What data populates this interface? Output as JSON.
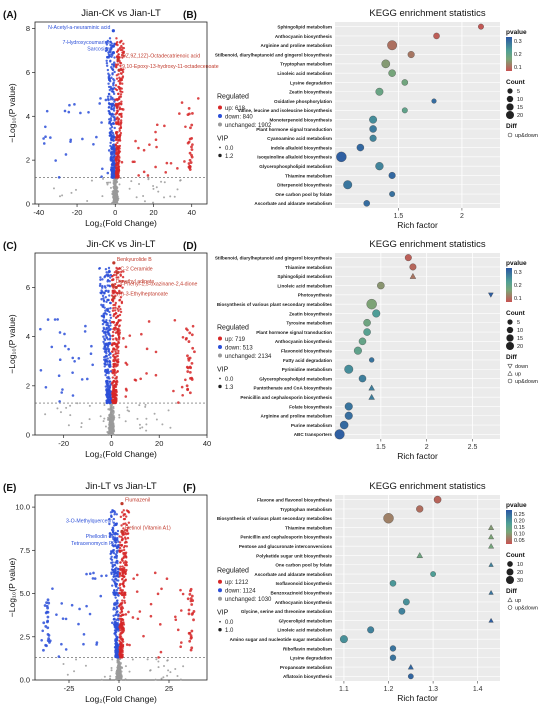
{
  "colors": {
    "up": "#d62728",
    "down": "#2b4fd8",
    "unchanged": "#9a9a9a",
    "ann_up": "#c0392b",
    "ann_down": "#2b4fd8"
  },
  "chart_data": [
    {
      "type": "scatter",
      "panel_label": "(A)",
      "title": "Jian-CK vs Jian-LT",
      "xlabel": "Log₂(Fold Change)",
      "ylabel": "−Log₁₀(P value)",
      "xlim": [
        -42,
        48
      ],
      "ylim": [
        0,
        8.3
      ],
      "xticks": [
        -40,
        -20,
        0,
        20,
        40
      ],
      "yticks": [
        0,
        2,
        4,
        6,
        8
      ],
      "threshold_y": 1.2,
      "legend": {
        "title": "Regulated",
        "entries": [
          "up: 618",
          "down: 840",
          "unchanged: 1902"
        ],
        "vip_title": "VIP",
        "vip_values": [
          "0.0",
          "1.2"
        ]
      },
      "annotations": [
        {
          "label": "N-Acetyl-a-neuraminic acid",
          "x": -1.0,
          "y": 7.9,
          "regulated": "down"
        },
        {
          "label": "7-Hydroxycoumarine",
          "x": -1.0,
          "y": 7.2,
          "regulated": "down"
        },
        {
          "label": "Sarcosine",
          "x": -1.0,
          "y": 6.9,
          "regulated": "down"
        },
        {
          "label": "(9Z,9Z,12Z)-Octadecatrienoic acid",
          "x": 1.5,
          "y": 6.6,
          "regulated": "up"
        },
        {
          "label": "9,10-Epoxy-13-hydroxy-11-octadecenoate",
          "x": 2.0,
          "y": 6.1,
          "regulated": "up"
        }
      ]
    },
    {
      "type": "dot",
      "panel_label": "(B)",
      "title": "KEGG enrichment statistics",
      "xlabel": "Rich factor",
      "xlim": [
        1.0,
        2.3
      ],
      "xticks": [
        1.5,
        2.0
      ],
      "categories": [
        "Sphingolipid metabolism",
        "Anthocyanin biosynthesis",
        "Arginine and proline metabolism",
        "Stilbenoid, diarylheptanoid and gingerol biosynthesis",
        "Tryptophan metabolism",
        "Linoleic acid metabolism",
        "Lysine degradation",
        "Zeatin biosynthesis",
        "Oxidative phosphorylation",
        "Valine, leucine and isoleucine biosynthesis",
        "Monoterpenoid biosynthesis",
        "Plant hormone signal transduction",
        "Cyanoamino acid metabolism",
        "Indole alkaloid biosynthesis",
        "Isoquinoline alkaloid biosynthesis",
        "Glycerophospholipid metabolism",
        "Thiamine metabolism",
        "Diterpenoid biosynthesis",
        "One carbon pool by folate",
        "Ascorbate and aldarate metabolism"
      ],
      "rich": [
        2.15,
        1.8,
        1.45,
        1.6,
        1.4,
        1.45,
        1.55,
        1.35,
        1.78,
        1.55,
        1.3,
        1.3,
        1.3,
        1.2,
        1.05,
        1.35,
        1.45,
        1.1,
        1.45,
        1.25
      ],
      "counts": [
        2,
        3,
        12,
        4,
        8,
        5,
        3,
        6,
        1,
        2,
        6,
        5,
        4,
        5,
        14,
        7,
        4,
        9,
        2,
        3
      ],
      "pvalue": [
        0.01,
        0.02,
        0.05,
        0.06,
        0.12,
        0.15,
        0.16,
        0.18,
        0.35,
        0.2,
        0.28,
        0.32,
        0.3,
        0.36,
        0.38,
        0.3,
        0.36,
        0.33,
        0.34,
        0.35
      ],
      "diff": [
        "up&down",
        "up&down",
        "up&down",
        "up&down",
        "up&down",
        "up&down",
        "up&down",
        "up&down",
        "up&down",
        "up&down",
        "up&down",
        "up&down",
        "up&down",
        "up&down",
        "up&down",
        "up&down",
        "up&down",
        "up&down",
        "up&down",
        "up&down"
      ],
      "legend": {
        "pvalue_title": "pvalue",
        "pvalue_ticks": [
          "0.3",
          "0.2",
          "0.1"
        ],
        "count_title": "Count",
        "count_sizes": [
          5,
          10,
          15,
          20
        ],
        "diff_title": "Diff",
        "diff_entries": [
          "up&down"
        ]
      }
    },
    {
      "type": "scatter",
      "panel_label": "(C)",
      "title": "Jin-CK vs Jin-LT",
      "xlabel": "Log₂(Fold Change)",
      "ylabel": "−Log₁₀(P value)",
      "xlim": [
        -32,
        40
      ],
      "ylim": [
        0,
        7.4
      ],
      "xticks": [
        -20,
        0,
        20,
        40
      ],
      "yticks": [
        0,
        2,
        4,
        6
      ],
      "threshold_y": 1.3,
      "legend": {
        "title": "Regulated",
        "entries": [
          "up: 719",
          "down: 513",
          "unchanged: 2134"
        ],
        "vip_title": "VIP",
        "vip_values": [
          "0.0",
          "1.3"
        ]
      },
      "annotations": [
        {
          "label": "Benkyurolide B",
          "x": 1.0,
          "y": 7.0,
          "regulated": "up"
        },
        {
          "label": "C-2 Ceramide",
          "x": 2.5,
          "y": 6.6,
          "regulated": "up"
        },
        {
          "label": "Dimethyl adipate",
          "x": 0.5,
          "y": 6.1,
          "regulated": "up"
        },
        {
          "label": "3-Phenyl-1,5-oxazinane-2,4-dione",
          "x": 2.0,
          "y": 6.0,
          "regulated": "up"
        },
        {
          "label": "(R)-3-Ethylheptanoate",
          "x": 1.0,
          "y": 5.6,
          "regulated": "up"
        }
      ]
    },
    {
      "type": "dot",
      "panel_label": "(D)",
      "title": "KEGG enrichment statistics",
      "xlabel": "Rich factor",
      "xlim": [
        1.0,
        2.8
      ],
      "xticks": [
        1.5,
        2.0,
        2.5
      ],
      "categories": [
        "Stilbenoid, diarylheptanoid and gingerol biosynthesis",
        "Thiamine metabolism",
        "Sphingolipid metabolism",
        "Linoleic acid metabolism",
        "Photosynthesis",
        "Biosynthesis of various plant secondary metabolites",
        "Zeatin biosynthesis",
        "Tyrosine metabolism",
        "Plant hormone signal transduction",
        "Anthocyanin biosynthesis",
        "Flavonoid biosynthesis",
        "Fatty acid degradation",
        "Pyrimidine metabolism",
        "Glycerophospholipid metabolism",
        "Pantothenate and CoA biosynthesis",
        "Penicillin and cephalosporin biosynthesis",
        "Folate biosynthesis",
        "Arginine and proline metabolism",
        "Purine metabolism",
        "ABC transporters"
      ],
      "rich": [
        1.8,
        1.85,
        1.85,
        1.5,
        2.7,
        1.4,
        1.45,
        1.35,
        1.35,
        1.3,
        1.25,
        1.4,
        1.15,
        1.3,
        1.4,
        1.4,
        1.15,
        1.15,
        1.1,
        1.05
      ],
      "counts": [
        3,
        3,
        2,
        4,
        1,
        11,
        5,
        4,
        4,
        4,
        5,
        1,
        7,
        4,
        2,
        2,
        5,
        5,
        6,
        10
      ],
      "pvalue": [
        0.02,
        0.03,
        0.05,
        0.1,
        0.34,
        0.12,
        0.22,
        0.15,
        0.2,
        0.17,
        0.18,
        0.3,
        0.25,
        0.28,
        0.28,
        0.28,
        0.3,
        0.31,
        0.32,
        0.34
      ],
      "diff": [
        "up&down",
        "up&down",
        "up",
        "up&down",
        "down",
        "up&down",
        "up&down",
        "up&down",
        "up&down",
        "up&down",
        "up&down",
        "up&down",
        "up&down",
        "up&down",
        "up",
        "up",
        "up&down",
        "up&down",
        "up&down",
        "up&down"
      ],
      "legend": {
        "pvalue_title": "pvalue",
        "pvalue_ticks": [
          "0.3",
          "0.2",
          "0.1"
        ],
        "count_title": "Count",
        "count_sizes": [
          5,
          10,
          15,
          20
        ],
        "diff_title": "Diff",
        "diff_entries": [
          "down",
          "up",
          "up&down"
        ]
      }
    },
    {
      "type": "scatter",
      "panel_label": "(E)",
      "title": "Jin-LT vs Jian-LT",
      "xlabel": "Log₂(Fold Change)",
      "ylabel": "−Log₁₀(P value)",
      "xlim": [
        -42,
        44
      ],
      "ylim": [
        0,
        10.7
      ],
      "xticks": [
        -25,
        0,
        25
      ],
      "yticks": [
        0.0,
        2.5,
        5.0,
        7.5,
        10.0
      ],
      "threshold_y": 1.3,
      "legend": {
        "title": "Regulated",
        "entries": [
          "up: 1212",
          "down: 1124",
          "unchanged: 1030"
        ],
        "vip_title": "VIP",
        "vip_values": [
          "0.0",
          "1.0"
        ]
      },
      "annotations": [
        {
          "label": "Flumazenil",
          "x": 1.5,
          "y": 10.2,
          "regulated": "up"
        },
        {
          "label": "3-O-Methylquercetin",
          "x": -1.5,
          "y": 9.0,
          "regulated": "down"
        },
        {
          "label": "Retinol (Vitamin A1)",
          "x": 1.5,
          "y": 8.6,
          "regulated": "up"
        },
        {
          "label": "Phellodin B",
          "x": -2.0,
          "y": 8.1,
          "regulated": "down"
        },
        {
          "label": "Tetracenomycin F2",
          "x": -0.5,
          "y": 7.7,
          "regulated": "down"
        }
      ]
    },
    {
      "type": "dot",
      "panel_label": "(F)",
      "title": "KEGG enrichment statistics",
      "xlabel": "Rich factor",
      "xlim": [
        1.08,
        1.45
      ],
      "xticks": [
        1.1,
        1.2,
        1.3,
        1.4
      ],
      "categories": [
        "Flavone and flavonol biosynthesis",
        "Tryptophan metabolism",
        "Biosynthesis of various plant secondary metabolites",
        "Thiamine metabolism",
        "Penicillin and cephalosporin biosynthesis",
        "Pentose and glucuronate interconversions",
        "Polyketide sugar unit biosynthesis",
        "One carbon pool by folate",
        "Ascorbate and aldarate metabolism",
        "Isoflavonoid biosynthesis",
        "Benzoxazinoid biosynthesis",
        "Anthocyanin biosynthesis",
        "Glycine, serine and threonine metabolism",
        "Glycerolipid metabolism",
        "Linoleic acid metabolism",
        "Amino sugar and nucleotide sugar metabolism",
        "Riboflavin metabolism",
        "Lysine degradation",
        "Propanoate metabolism",
        "Aflatoxin biosynthesis"
      ],
      "rich": [
        1.31,
        1.27,
        1.2,
        1.43,
        1.43,
        1.43,
        1.27,
        1.43,
        1.3,
        1.21,
        1.43,
        1.24,
        1.23,
        1.43,
        1.16,
        1.1,
        1.21,
        1.21,
        1.25,
        1.25
      ],
      "counts": [
        12,
        10,
        32,
        4,
        4,
        4,
        6,
        2,
        4,
        7,
        2,
        8,
        8,
        2,
        9,
        14,
        6,
        6,
        4,
        4
      ],
      "pvalue": [
        0.02,
        0.03,
        0.05,
        0.08,
        0.09,
        0.1,
        0.11,
        0.2,
        0.16,
        0.17,
        0.22,
        0.18,
        0.2,
        0.25,
        0.2,
        0.18,
        0.22,
        0.22,
        0.24,
        0.24
      ],
      "diff": [
        "up&down",
        "up&down",
        "up&down",
        "up",
        "up",
        "up",
        "up",
        "up",
        "up&down",
        "up&down",
        "up",
        "up&down",
        "up&down",
        "up",
        "up&down",
        "up&down",
        "up&down",
        "up&down",
        "up",
        "up&down"
      ],
      "legend": {
        "pvalue_title": "pvalue",
        "pvalue_ticks": [
          "0.25",
          "0.20",
          "0.15",
          "0.10",
          "0.05"
        ],
        "count_title": "Count",
        "count_sizes": [
          10,
          20,
          30
        ],
        "diff_title": "Diff",
        "diff_entries": [
          "up",
          "up&down"
        ]
      }
    }
  ]
}
